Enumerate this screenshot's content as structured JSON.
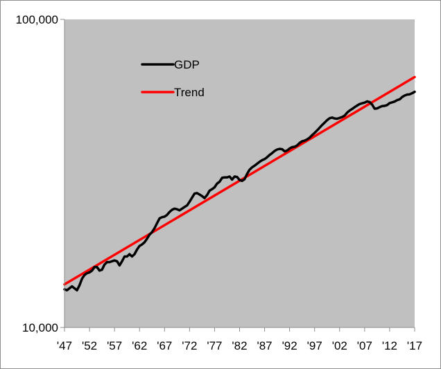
{
  "chart_data": {
    "type": "line",
    "title": "",
    "xlabel": "",
    "ylabel": "",
    "y_scale": "log",
    "ylim": [
      10000,
      100000
    ],
    "xlim": [
      1947,
      2017
    ],
    "y_ticks": [
      {
        "value": 10000,
        "label": "10,000"
      },
      {
        "value": 100000,
        "label": "100,000"
      }
    ],
    "x_ticks": [
      {
        "value": 1947,
        "label": "'47"
      },
      {
        "value": 1952,
        "label": "'52"
      },
      {
        "value": 1957,
        "label": "'57"
      },
      {
        "value": 1962,
        "label": "'62"
      },
      {
        "value": 1967,
        "label": "'67"
      },
      {
        "value": 1972,
        "label": "'72"
      },
      {
        "value": 1977,
        "label": "'77"
      },
      {
        "value": 1982,
        "label": "'82"
      },
      {
        "value": 1987,
        "label": "'87"
      },
      {
        "value": 1992,
        "label": "'92"
      },
      {
        "value": 1997,
        "label": "'97"
      },
      {
        "value": 2002,
        "label": "'02"
      },
      {
        "value": 2007,
        "label": "'07"
      },
      {
        "value": 2012,
        "label": "'12"
      },
      {
        "value": 2017,
        "label": "'17"
      }
    ],
    "grid": false,
    "legend_position": "upper-left",
    "background_color": "#c0c0c0",
    "series": [
      {
        "name": "GDP",
        "color": "#000000",
        "points": [
          [
            1947.0,
            13300
          ],
          [
            1947.5,
            13200
          ],
          [
            1948.0,
            13400
          ],
          [
            1948.5,
            13600
          ],
          [
            1949.0,
            13400
          ],
          [
            1949.5,
            13200
          ],
          [
            1950.0,
            13700
          ],
          [
            1950.5,
            14400
          ],
          [
            1951.0,
            14800
          ],
          [
            1951.5,
            15000
          ],
          [
            1952.0,
            15100
          ],
          [
            1952.5,
            15300
          ],
          [
            1953.0,
            15700
          ],
          [
            1953.5,
            15700
          ],
          [
            1954.0,
            15300
          ],
          [
            1954.5,
            15400
          ],
          [
            1955.0,
            16000
          ],
          [
            1955.5,
            16300
          ],
          [
            1956.0,
            16300
          ],
          [
            1956.5,
            16400
          ],
          [
            1957.0,
            16500
          ],
          [
            1957.5,
            16400
          ],
          [
            1958.0,
            15900
          ],
          [
            1958.5,
            16400
          ],
          [
            1959.0,
            17000
          ],
          [
            1959.5,
            17000
          ],
          [
            1960.0,
            17300
          ],
          [
            1960.5,
            17000
          ],
          [
            1961.0,
            17300
          ],
          [
            1961.5,
            17900
          ],
          [
            1962.0,
            18400
          ],
          [
            1962.5,
            18600
          ],
          [
            1963.0,
            18900
          ],
          [
            1963.5,
            19400
          ],
          [
            1964.0,
            20000
          ],
          [
            1964.5,
            20400
          ],
          [
            1965.0,
            21000
          ],
          [
            1965.5,
            21800
          ],
          [
            1966.0,
            22600
          ],
          [
            1966.5,
            22800
          ],
          [
            1967.0,
            22900
          ],
          [
            1967.5,
            23200
          ],
          [
            1968.0,
            23700
          ],
          [
            1968.5,
            24100
          ],
          [
            1969.0,
            24300
          ],
          [
            1969.5,
            24200
          ],
          [
            1970.0,
            24000
          ],
          [
            1970.5,
            24300
          ],
          [
            1971.0,
            24600
          ],
          [
            1971.5,
            24900
          ],
          [
            1972.0,
            25600
          ],
          [
            1972.5,
            26400
          ],
          [
            1973.0,
            27200
          ],
          [
            1973.5,
            27300
          ],
          [
            1974.0,
            27000
          ],
          [
            1974.5,
            26700
          ],
          [
            1975.0,
            26300
          ],
          [
            1975.5,
            26900
          ],
          [
            1976.0,
            27800
          ],
          [
            1976.5,
            28100
          ],
          [
            1977.0,
            28500
          ],
          [
            1977.5,
            29300
          ],
          [
            1978.0,
            29700
          ],
          [
            1978.5,
            30600
          ],
          [
            1979.0,
            30700
          ],
          [
            1979.5,
            30700
          ],
          [
            1980.0,
            30900
          ],
          [
            1980.5,
            30200
          ],
          [
            1981.0,
            30900
          ],
          [
            1981.5,
            30800
          ],
          [
            1982.0,
            30100
          ],
          [
            1982.5,
            29900
          ],
          [
            1983.0,
            30300
          ],
          [
            1983.5,
            31500
          ],
          [
            1984.0,
            32500
          ],
          [
            1984.5,
            33100
          ],
          [
            1985.0,
            33500
          ],
          [
            1985.5,
            34000
          ],
          [
            1986.0,
            34500
          ],
          [
            1986.5,
            34900
          ],
          [
            1987.0,
            35200
          ],
          [
            1987.5,
            35700
          ],
          [
            1988.0,
            36300
          ],
          [
            1988.5,
            36800
          ],
          [
            1989.0,
            37400
          ],
          [
            1989.5,
            37800
          ],
          [
            1990.0,
            38000
          ],
          [
            1990.5,
            37900
          ],
          [
            1991.0,
            37300
          ],
          [
            1991.5,
            37500
          ],
          [
            1992.0,
            38100
          ],
          [
            1992.5,
            38500
          ],
          [
            1993.0,
            38600
          ],
          [
            1993.5,
            39000
          ],
          [
            1994.0,
            39700
          ],
          [
            1994.5,
            40200
          ],
          [
            1995.0,
            40400
          ],
          [
            1995.5,
            40800
          ],
          [
            1996.0,
            41300
          ],
          [
            1996.5,
            42100
          ],
          [
            1997.0,
            42800
          ],
          [
            1997.5,
            43600
          ],
          [
            1998.0,
            44500
          ],
          [
            1998.5,
            45400
          ],
          [
            1999.0,
            46200
          ],
          [
            1999.5,
            47100
          ],
          [
            2000.0,
            47800
          ],
          [
            2000.5,
            48000
          ],
          [
            2001.0,
            47700
          ],
          [
            2001.5,
            47600
          ],
          [
            2002.0,
            47900
          ],
          [
            2002.5,
            48200
          ],
          [
            2003.0,
            48700
          ],
          [
            2003.5,
            49800
          ],
          [
            2004.0,
            50600
          ],
          [
            2004.5,
            51200
          ],
          [
            2005.0,
            51900
          ],
          [
            2005.5,
            52500
          ],
          [
            2006.0,
            53100
          ],
          [
            2006.5,
            53400
          ],
          [
            2007.0,
            53700
          ],
          [
            2007.5,
            54200
          ],
          [
            2008.0,
            53900
          ],
          [
            2008.5,
            52900
          ],
          [
            2009.0,
            51300
          ],
          [
            2009.5,
            51400
          ],
          [
            2010.0,
            51900
          ],
          [
            2010.5,
            52300
          ],
          [
            2011.0,
            52400
          ],
          [
            2011.5,
            52700
          ],
          [
            2012.0,
            53500
          ],
          [
            2012.5,
            53800
          ],
          [
            2013.0,
            54100
          ],
          [
            2013.5,
            54700
          ],
          [
            2014.0,
            55000
          ],
          [
            2014.5,
            56000
          ],
          [
            2015.0,
            56600
          ],
          [
            2015.5,
            57000
          ],
          [
            2016.0,
            57100
          ],
          [
            2016.5,
            57600
          ],
          [
            2017.0,
            58200
          ]
        ]
      },
      {
        "name": "Trend",
        "color": "#ff0000",
        "points": [
          [
            1947.0,
            13800
          ],
          [
            2017.0,
            65000
          ]
        ]
      }
    ]
  }
}
